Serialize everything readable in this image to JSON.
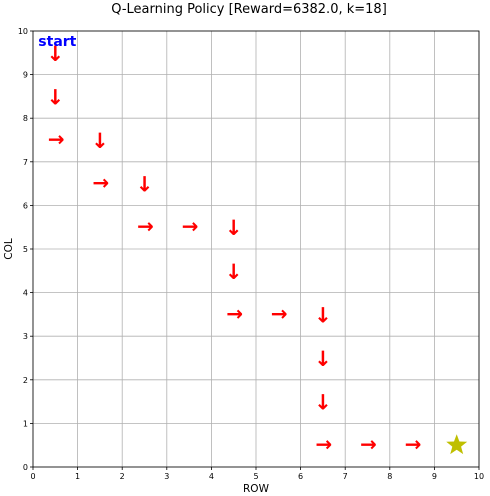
{
  "chart_data": {
    "type": "scatter",
    "title": "Q-Learning Policy [Reward=6382.0, k=18]",
    "xlabel": "ROW",
    "ylabel": "COL",
    "xlim": [
      0,
      10
    ],
    "ylim": [
      0,
      10
    ],
    "grid": true,
    "x_ticks": [
      "0",
      "1",
      "2",
      "3",
      "4",
      "5",
      "6",
      "7",
      "8",
      "9",
      "10"
    ],
    "y_ticks": [
      "0",
      "1",
      "2",
      "3",
      "4",
      "5",
      "6",
      "7",
      "8",
      "9",
      "10"
    ],
    "start": {
      "label": "start",
      "x": 0.5,
      "y": 9.5,
      "color": "#0000ff"
    },
    "goal": {
      "icon": "star-icon",
      "x": 9.5,
      "y": 0.5,
      "color": "#bfbf00"
    },
    "arrow_color": "#ff0000",
    "policy": [
      {
        "x": 0.5,
        "y": 9.5,
        "action": "↓"
      },
      {
        "x": 0.5,
        "y": 8.5,
        "action": "↓"
      },
      {
        "x": 0.5,
        "y": 7.5,
        "action": "→"
      },
      {
        "x": 1.5,
        "y": 7.5,
        "action": "↓"
      },
      {
        "x": 1.5,
        "y": 6.5,
        "action": "→"
      },
      {
        "x": 2.5,
        "y": 6.5,
        "action": "↓"
      },
      {
        "x": 2.5,
        "y": 5.5,
        "action": "→"
      },
      {
        "x": 3.5,
        "y": 5.5,
        "action": "→"
      },
      {
        "x": 4.5,
        "y": 5.5,
        "action": "↓"
      },
      {
        "x": 4.5,
        "y": 4.5,
        "action": "↓"
      },
      {
        "x": 4.5,
        "y": 3.5,
        "action": "→"
      },
      {
        "x": 5.5,
        "y": 3.5,
        "action": "→"
      },
      {
        "x": 6.5,
        "y": 3.5,
        "action": "↓"
      },
      {
        "x": 6.5,
        "y": 2.5,
        "action": "↓"
      },
      {
        "x": 6.5,
        "y": 1.5,
        "action": "↓"
      },
      {
        "x": 6.5,
        "y": 0.5,
        "action": "→"
      },
      {
        "x": 7.5,
        "y": 0.5,
        "action": "→"
      },
      {
        "x": 8.5,
        "y": 0.5,
        "action": "→"
      }
    ]
  }
}
